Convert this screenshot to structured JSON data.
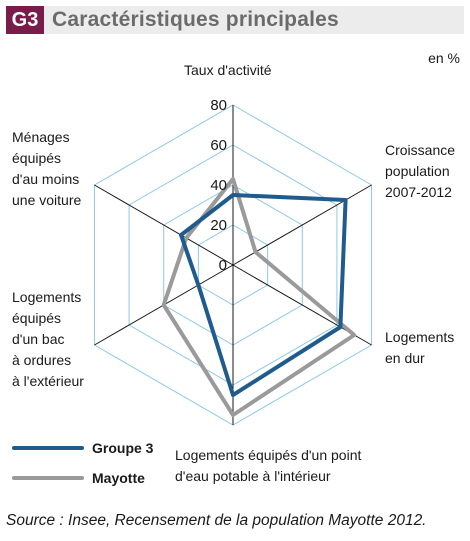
{
  "header": {
    "badge": "G3",
    "title": "Caractéristiques principales"
  },
  "unit": "en %",
  "chart_data": {
    "type": "radar",
    "axes": [
      "Taux d'activité",
      "Croissance population 2007-2012",
      "Logements en dur",
      "Logements équipés d'un point d'eau potable à l'intérieur",
      "Logements équipés d'un bac à ordures à l'extérieur",
      "Ménages équipés d'au moins une voiture"
    ],
    "rmax": 80,
    "ticks": [
      0,
      20,
      40,
      60,
      80
    ],
    "grid": true,
    "series": [
      {
        "name": "Groupe 3",
        "color": "#1f5b8c",
        "values": [
          35,
          65,
          62,
          65,
          20,
          30
        ]
      },
      {
        "name": "Mayotte",
        "color": "#9a9a9a",
        "values": [
          43,
          13,
          70,
          75,
          40,
          27
        ]
      }
    ]
  },
  "labels": {
    "top": "Taux d'activité",
    "upper_right": [
      "Croissance",
      "population",
      "2007-2012"
    ],
    "lower_right": [
      "Logements",
      "en dur"
    ],
    "bottom": [
      "Logements équipés d'un point",
      "d'eau potable à l'intérieur"
    ],
    "lower_left": [
      "Logements",
      "équipés",
      "d'un bac",
      "à ordures",
      "à l'extérieur"
    ],
    "upper_left": [
      "Ménages",
      "équipés",
      "d'au moins",
      "une voiture"
    ]
  },
  "legend": [
    {
      "label": "Groupe 3",
      "color": "#1f5b8c"
    },
    {
      "label": "Mayotte",
      "color": "#9a9a9a"
    }
  ],
  "source": "Source : Insee, Recensement de la population Mayotte 2012."
}
